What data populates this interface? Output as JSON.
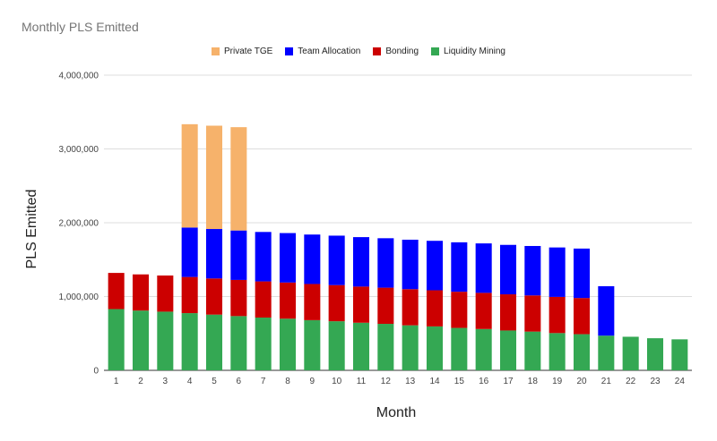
{
  "chart_data": {
    "type": "bar",
    "stacked": true,
    "title": "Monthly PLS Emitted",
    "xlabel": "Month",
    "ylabel": "PLS Emitted",
    "ylim": [
      0,
      4000000
    ],
    "yticks": [
      "0",
      "1,000,000",
      "2,000,000",
      "3,000,000",
      "4,000,000"
    ],
    "legend_position": "top",
    "categories": [
      "1",
      "2",
      "3",
      "4",
      "5",
      "6",
      "7",
      "8",
      "9",
      "10",
      "11",
      "12",
      "13",
      "14",
      "15",
      "16",
      "17",
      "18",
      "19",
      "20",
      "21",
      "22",
      "23",
      "24"
    ],
    "series": [
      {
        "name": "Liquidity Mining",
        "color": "#34a853",
        "values": [
          830000,
          810000,
          795000,
          775000,
          755000,
          735000,
          715000,
          700000,
          680000,
          665000,
          645000,
          630000,
          610000,
          595000,
          575000,
          560000,
          540000,
          525000,
          505000,
          490000,
          470000,
          455000,
          435000,
          420000
        ]
      },
      {
        "name": "Bonding",
        "color": "#cc0000",
        "values": [
          490000,
          490000,
          490000,
          490000,
          490000,
          490000,
          490000,
          490000,
          490000,
          490000,
          490000,
          490000,
          490000,
          490000,
          490000,
          490000,
          490000,
          490000,
          490000,
          490000,
          0,
          0,
          0,
          0
        ]
      },
      {
        "name": "Team Allocation",
        "color": "#0000ff",
        "values": [
          0,
          0,
          0,
          670000,
          670000,
          670000,
          670000,
          670000,
          670000,
          670000,
          670000,
          670000,
          670000,
          670000,
          670000,
          670000,
          670000,
          670000,
          670000,
          670000,
          670000,
          0,
          0,
          0
        ]
      },
      {
        "name": "Private TGE",
        "color": "#f6b26b",
        "values": [
          0,
          0,
          0,
          1400000,
          1400000,
          1400000,
          0,
          0,
          0,
          0,
          0,
          0,
          0,
          0,
          0,
          0,
          0,
          0,
          0,
          0,
          0,
          0,
          0,
          0
        ]
      }
    ],
    "legend_order": [
      "Private TGE",
      "Team Allocation",
      "Bonding",
      "Liquidity Mining"
    ]
  }
}
